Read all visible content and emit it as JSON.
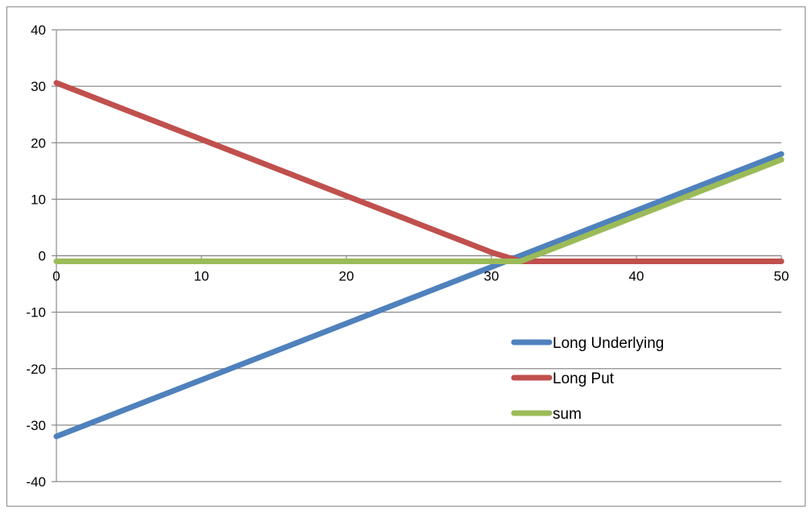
{
  "chart_data": {
    "type": "line",
    "title": "",
    "xlabel": "",
    "ylabel": "",
    "xlim": [
      0,
      50
    ],
    "ylim": [
      -40,
      40
    ],
    "x_ticks": [
      0,
      10,
      20,
      30,
      40,
      50
    ],
    "y_ticks": [
      40,
      30,
      20,
      10,
      0,
      -10,
      -20,
      -30,
      -40
    ],
    "grid": "horizontal",
    "legend_position": "inside-right",
    "series": [
      {
        "name": "Long Underlying",
        "color": "#4f81bd",
        "x": [
          0,
          2,
          5,
          10,
          15,
          20,
          25,
          30,
          32,
          35,
          40,
          45,
          50
        ],
        "y": [
          -32,
          -30,
          -27,
          -22,
          -17,
          -12,
          -7,
          -2,
          0,
          3,
          8,
          13,
          18
        ]
      },
      {
        "name": "Long Put",
        "color": "#c0504d",
        "x": [
          0,
          2,
          5,
          10,
          15,
          20,
          25,
          30,
          32,
          35,
          40,
          45,
          50
        ],
        "y": [
          30.6,
          28.6,
          25.6,
          20.6,
          15.6,
          10.6,
          5.6,
          0.6,
          -1,
          -1,
          -1,
          -1,
          -1
        ]
      },
      {
        "name": "sum",
        "color": "#9bbb59",
        "x": [
          0,
          10,
          20,
          30,
          32,
          35,
          40,
          45,
          50
        ],
        "y": [
          -1,
          -1,
          -1,
          -1,
          -1,
          2,
          7,
          12,
          17
        ]
      }
    ]
  }
}
